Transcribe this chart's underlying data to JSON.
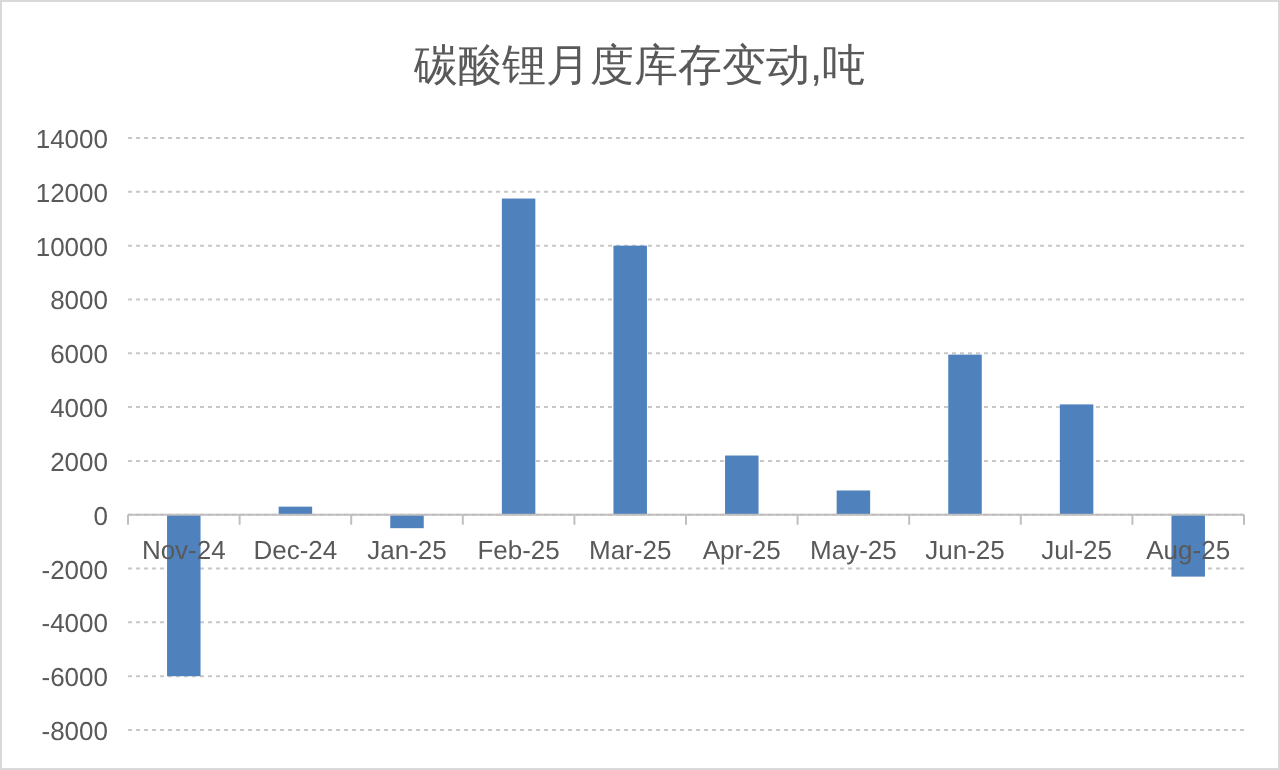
{
  "chart_data": {
    "type": "bar",
    "title": "碳酸锂月度库存变动,吨",
    "categories": [
      "Nov-24",
      "Dec-24",
      "Jan-25",
      "Feb-25",
      "Mar-25",
      "Apr-25",
      "May-25",
      "Jun-25",
      "Jul-25",
      "Aug-25"
    ],
    "values": [
      -6000,
      300,
      -500,
      11750,
      10000,
      2200,
      900,
      5950,
      4100,
      -2300
    ],
    "color": "#4f81bd",
    "ylim": [
      -8000,
      14000
    ],
    "yticks": [
      -8000,
      -6000,
      -4000,
      -2000,
      0,
      2000,
      4000,
      6000,
      8000,
      10000,
      12000,
      14000
    ],
    "grid": "y"
  }
}
